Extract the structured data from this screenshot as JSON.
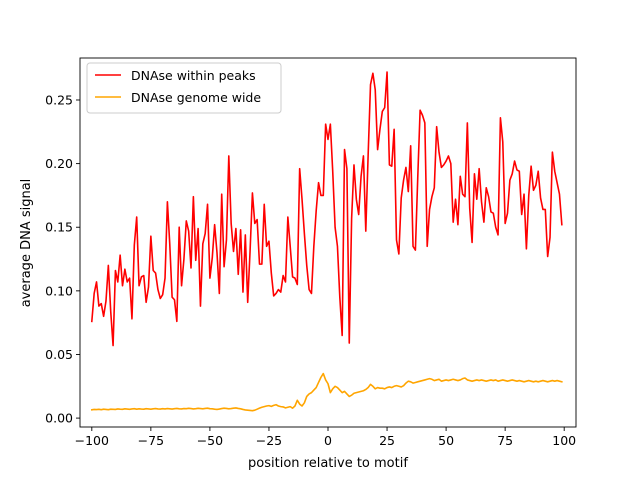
{
  "chart_data": {
    "type": "line",
    "title": "",
    "xlabel": "position relative to motif",
    "ylabel": "average DNA signal",
    "xlim": [
      -105,
      105
    ],
    "ylim": [
      -0.007,
      0.283
    ],
    "xticks": [
      -100,
      -75,
      -50,
      -25,
      0,
      25,
      50,
      75,
      100
    ],
    "yticks": [
      0.0,
      0.05,
      0.1,
      0.15,
      0.2,
      0.25
    ],
    "ytick_format": 2,
    "grid": false,
    "legend": "top-left",
    "x_start": -100,
    "x_step": 1,
    "series": [
      {
        "name": "DNAse within peaks",
        "color": "#ff0000",
        "values": [
          0.076,
          0.098,
          0.107,
          0.088,
          0.09,
          0.08,
          0.092,
          0.12,
          0.084,
          0.057,
          0.116,
          0.107,
          0.128,
          0.104,
          0.117,
          0.107,
          0.11,
          0.078,
          0.136,
          0.158,
          0.104,
          0.111,
          0.112,
          0.091,
          0.103,
          0.143,
          0.116,
          0.114,
          0.101,
          0.094,
          0.097,
          0.11,
          0.17,
          0.137,
          0.095,
          0.093,
          0.076,
          0.15,
          0.104,
          0.125,
          0.155,
          0.147,
          0.118,
          0.174,
          0.124,
          0.149,
          0.088,
          0.137,
          0.145,
          0.168,
          0.11,
          0.126,
          0.152,
          0.13,
          0.098,
          0.176,
          0.119,
          0.14,
          0.206,
          0.153,
          0.131,
          0.149,
          0.113,
          0.148,
          0.099,
          0.144,
          0.091,
          0.131,
          0.177,
          0.153,
          0.156,
          0.121,
          0.121,
          0.168,
          0.135,
          0.139,
          0.114,
          0.096,
          0.098,
          0.101,
          0.099,
          0.112,
          0.107,
          0.158,
          0.135,
          0.111,
          0.11,
          0.105,
          0.196,
          0.172,
          0.145,
          0.12,
          0.101,
          0.098,
          0.135,
          0.163,
          0.185,
          0.175,
          0.175,
          0.231,
          0.219,
          0.231,
          0.194,
          0.15,
          0.135,
          0.095,
          0.065,
          0.211,
          0.196,
          0.059,
          0.157,
          0.199,
          0.172,
          0.16,
          0.19,
          0.206,
          0.147,
          0.207,
          0.262,
          0.271,
          0.258,
          0.211,
          0.227,
          0.241,
          0.244,
          0.272,
          0.199,
          0.198,
          0.227,
          0.14,
          0.129,
          0.173,
          0.187,
          0.197,
          0.178,
          0.214,
          0.135,
          0.132,
          0.189,
          0.242,
          0.238,
          0.232,
          0.135,
          0.164,
          0.174,
          0.181,
          0.229,
          0.209,
          0.197,
          0.199,
          0.202,
          0.206,
          0.2,
          0.154,
          0.172,
          0.152,
          0.19,
          0.176,
          0.174,
          0.232,
          0.165,
          0.138,
          0.192,
          0.172,
          0.196,
          0.17,
          0.154,
          0.181,
          0.174,
          0.162,
          0.161,
          0.15,
          0.144,
          0.236,
          0.217,
          0.153,
          0.161,
          0.187,
          0.192,
          0.202,
          0.195,
          0.194,
          0.16,
          0.176,
          0.133,
          0.175,
          0.198,
          0.179,
          0.183,
          0.194,
          0.173,
          0.164,
          0.164,
          0.127,
          0.142,
          0.209,
          0.194,
          0.185,
          0.176,
          0.152
        ]
      },
      {
        "name": "DNAse genome wide",
        "color": "#ffa500",
        "values": [
          0.0065,
          0.0068,
          0.0067,
          0.0069,
          0.0066,
          0.007,
          0.0068,
          0.0066,
          0.007,
          0.0069,
          0.0068,
          0.0072,
          0.007,
          0.0069,
          0.0073,
          0.0071,
          0.0069,
          0.0072,
          0.0074,
          0.007,
          0.0073,
          0.0071,
          0.007,
          0.0074,
          0.0072,
          0.007,
          0.0073,
          0.0075,
          0.0072,
          0.0071,
          0.0074,
          0.0072,
          0.0075,
          0.0073,
          0.0071,
          0.0074,
          0.0076,
          0.0073,
          0.0072,
          0.0075,
          0.0074,
          0.0077,
          0.0075,
          0.0072,
          0.0074,
          0.0077,
          0.0075,
          0.0073,
          0.0076,
          0.0078,
          0.0074,
          0.0073,
          0.007,
          0.0068,
          0.0071,
          0.0075,
          0.0078,
          0.0076,
          0.0073,
          0.0075,
          0.0078,
          0.008,
          0.0076,
          0.0073,
          0.0068,
          0.0064,
          0.0062,
          0.006,
          0.0058,
          0.0062,
          0.007,
          0.0078,
          0.0085,
          0.009,
          0.0095,
          0.0098,
          0.0092,
          0.01,
          0.0105,
          0.0095,
          0.009,
          0.0088,
          0.008,
          0.0085,
          0.009,
          0.0078,
          0.0095,
          0.014,
          0.011,
          0.0095,
          0.012,
          0.017,
          0.019,
          0.02,
          0.022,
          0.024,
          0.028,
          0.032,
          0.035,
          0.03,
          0.027,
          0.02,
          0.023,
          0.025,
          0.024,
          0.022,
          0.02,
          0.021,
          0.019,
          0.017,
          0.018,
          0.0195,
          0.02,
          0.0205,
          0.021,
          0.0215,
          0.0225,
          0.024,
          0.0265,
          0.025,
          0.023,
          0.024,
          0.0235,
          0.0235,
          0.023,
          0.024,
          0.0245,
          0.024,
          0.025,
          0.0255,
          0.025,
          0.0245,
          0.0255,
          0.0275,
          0.029,
          0.0285,
          0.0275,
          0.028,
          0.0285,
          0.029,
          0.0295,
          0.03,
          0.0305,
          0.031,
          0.0305,
          0.0295,
          0.03,
          0.0305,
          0.029,
          0.0295,
          0.03,
          0.0295,
          0.03,
          0.0305,
          0.03,
          0.0295,
          0.03,
          0.031,
          0.0315,
          0.03,
          0.0295,
          0.029,
          0.0295,
          0.03,
          0.0295,
          0.03,
          0.0295,
          0.029,
          0.0295,
          0.03,
          0.0295,
          0.03,
          0.029,
          0.0295,
          0.03,
          0.0295,
          0.029,
          0.0295,
          0.03,
          0.0295,
          0.029,
          0.0295,
          0.029,
          0.0285,
          0.029,
          0.0295,
          0.029,
          0.0285,
          0.029,
          0.0285,
          0.029,
          0.0295,
          0.029,
          0.0285,
          0.029,
          0.0295,
          0.029,
          0.0295,
          0.029,
          0.0285
        ]
      }
    ]
  }
}
